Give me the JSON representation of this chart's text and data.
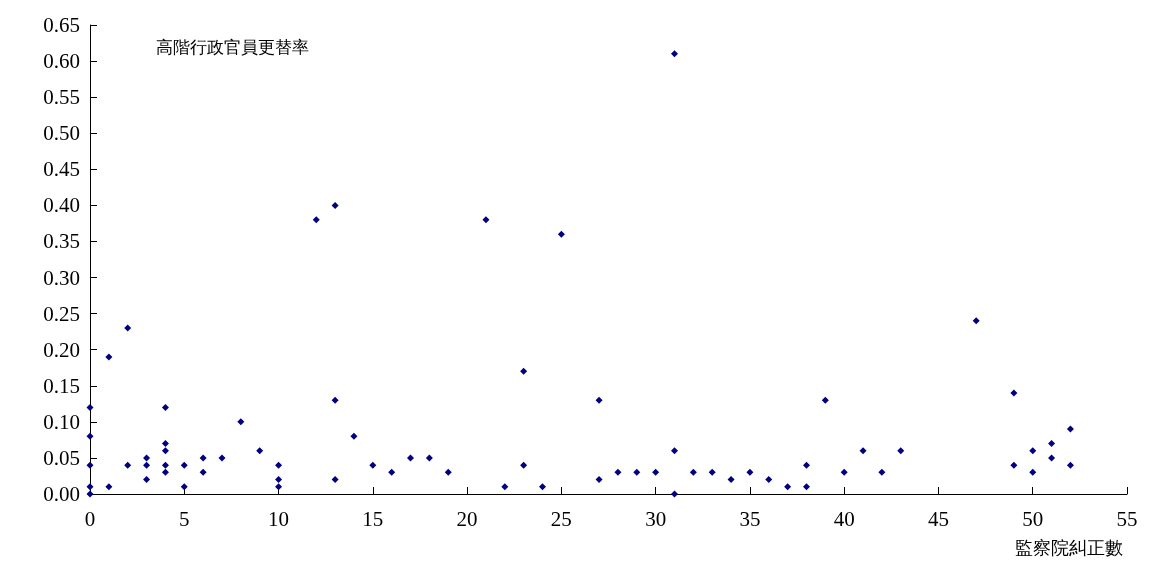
{
  "chart_data": {
    "type": "scatter",
    "xlabel": "監察院糾正數",
    "ylabel": "高階行政官員更替率",
    "color": "#000080",
    "marker": "diamond",
    "grid": false,
    "x": [
      0,
      0,
      0,
      0,
      0,
      1,
      1,
      2,
      2,
      3,
      3,
      3,
      4,
      4,
      4,
      4,
      4,
      5,
      5,
      6,
      6,
      7,
      8,
      9,
      10,
      10,
      10,
      12,
      13,
      13,
      13,
      14,
      15,
      16,
      17,
      18,
      19,
      21,
      22,
      23,
      23,
      24,
      25,
      27,
      27,
      28,
      29,
      30,
      31,
      31,
      31,
      32,
      33,
      34,
      35,
      36,
      37,
      38,
      38,
      39,
      40,
      41,
      42,
      43,
      47,
      49,
      49,
      50,
      50,
      51,
      51,
      52,
      52
    ],
    "values": [
      0.12,
      0.08,
      0.04,
      0.01,
      0.0,
      0.19,
      0.01,
      0.23,
      0.04,
      0.05,
      0.04,
      0.02,
      0.12,
      0.07,
      0.06,
      0.04,
      0.03,
      0.04,
      0.01,
      0.05,
      0.03,
      0.05,
      0.1,
      0.06,
      0.04,
      0.02,
      0.01,
      0.38,
      0.4,
      0.13,
      0.02,
      0.08,
      0.04,
      0.03,
      0.05,
      0.05,
      0.03,
      0.38,
      0.01,
      0.17,
      0.04,
      0.01,
      0.36,
      0.13,
      0.02,
      0.03,
      0.03,
      0.03,
      0.61,
      0.06,
      0.0,
      0.03,
      0.03,
      0.02,
      0.03,
      0.02,
      0.01,
      0.04,
      0.01,
      0.13,
      0.03,
      0.06,
      0.03,
      0.06,
      0.24,
      0.14,
      0.04,
      0.06,
      0.03,
      0.07,
      0.05,
      0.09,
      0.04
    ],
    "xlim": [
      0,
      55
    ],
    "xticks": [
      0,
      5,
      10,
      15,
      20,
      25,
      30,
      35,
      40,
      45,
      50,
      55
    ],
    "ylim": [
      0,
      0.65
    ],
    "yticks": [
      {
        "value": 0,
        "label": "0.00"
      },
      {
        "value": 0.05,
        "label": "0.05"
      },
      {
        "value": 0.1,
        "label": "0.10"
      },
      {
        "value": 0.15,
        "label": "0.15"
      },
      {
        "value": 0.2,
        "label": "0.20"
      },
      {
        "value": 0.25,
        "label": "0.25"
      },
      {
        "value": 0.3,
        "label": "0.30"
      },
      {
        "value": 0.35,
        "label": "0.35"
      },
      {
        "value": 0.4,
        "label": "0.40"
      },
      {
        "value": 0.45,
        "label": "0.45"
      },
      {
        "value": 0.5,
        "label": "0.50"
      },
      {
        "value": 0.55,
        "label": "0.55"
      },
      {
        "value": 0.6,
        "label": "0.60"
      },
      {
        "value": 0.65,
        "label": "0.65"
      }
    ]
  }
}
